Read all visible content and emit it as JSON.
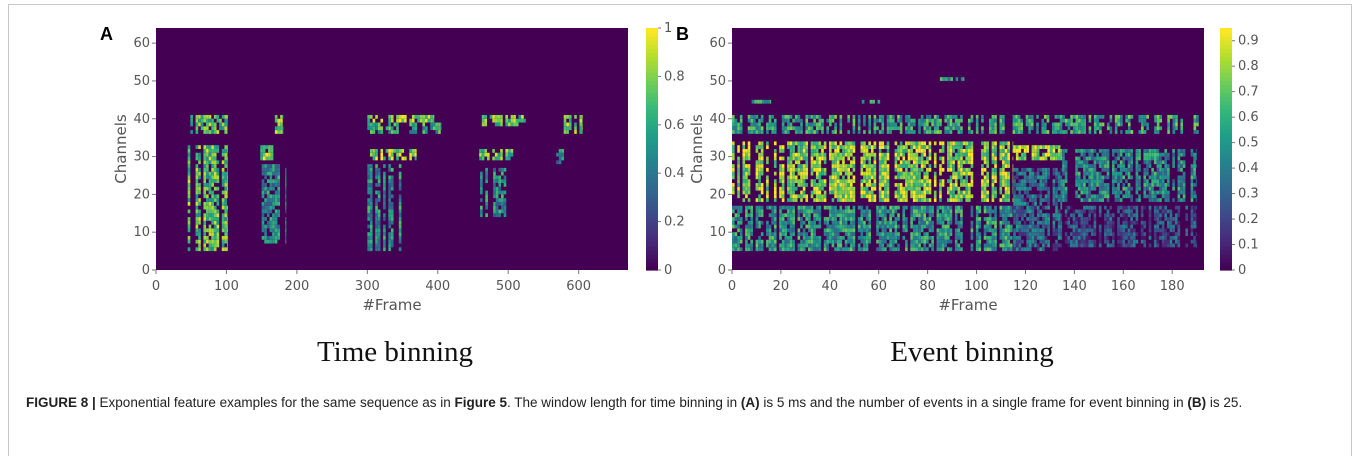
{
  "chart_data": [
    {
      "type": "heatmap",
      "panel_label": "A",
      "title": "Time binning",
      "xlabel": "#Frame",
      "ylabel": "Channels",
      "xlim": [
        0,
        670
      ],
      "ylim": [
        0,
        64
      ],
      "xticks": [
        0,
        100,
        200,
        300,
        400,
        500,
        600
      ],
      "yticks": [
        0,
        10,
        20,
        30,
        40,
        50,
        60
      ],
      "colorbar": {
        "min": 0,
        "max": 1,
        "ticks": [
          "0",
          "0.2",
          "0.4",
          "0.6",
          "0.8",
          "1"
        ],
        "colormap": "viridis"
      },
      "activity_regions": [
        {
          "x": [
            45,
            102
          ],
          "y": [
            5,
            33
          ],
          "level": 0.72
        },
        {
          "x": [
            45,
            102
          ],
          "y": [
            36,
            41
          ],
          "level": 0.7
        },
        {
          "x": [
            148,
            170
          ],
          "y": [
            29,
            33
          ],
          "level": 0.82
        },
        {
          "x": [
            165,
            180
          ],
          "y": [
            36,
            41
          ],
          "level": 0.75
        },
        {
          "x": [
            150,
            185
          ],
          "y": [
            7,
            28
          ],
          "level": 0.5
        },
        {
          "x": [
            300,
            395
          ],
          "y": [
            39,
            41
          ],
          "level": 0.8
        },
        {
          "x": [
            300,
            405
          ],
          "y": [
            36,
            39
          ],
          "level": 0.6
        },
        {
          "x": [
            300,
            370
          ],
          "y": [
            29,
            32
          ],
          "level": 0.8
        },
        {
          "x": [
            300,
            350
          ],
          "y": [
            5,
            28
          ],
          "level": 0.5
        },
        {
          "x": [
            455,
            525
          ],
          "y": [
            38,
            41
          ],
          "level": 0.75
        },
        {
          "x": [
            455,
            510
          ],
          "y": [
            29,
            32
          ],
          "level": 0.75
        },
        {
          "x": [
            460,
            500
          ],
          "y": [
            14,
            27
          ],
          "level": 0.5
        },
        {
          "x": [
            575,
            605
          ],
          "y": [
            36,
            41
          ],
          "level": 0.8
        },
        {
          "x": [
            568,
            582
          ],
          "y": [
            28,
            32
          ],
          "level": 0.5
        }
      ]
    },
    {
      "type": "heatmap",
      "panel_label": "B",
      "title": "Event binning",
      "xlabel": "#Frame",
      "ylabel": "Channels",
      "xlim": [
        0,
        193
      ],
      "ylim": [
        0,
        64
      ],
      "xticks": [
        0,
        20,
        40,
        60,
        80,
        100,
        120,
        140,
        160,
        180
      ],
      "yticks": [
        0,
        10,
        20,
        30,
        40,
        50,
        60
      ],
      "colorbar": {
        "min": 0,
        "max": 0.95,
        "ticks": [
          "0",
          "0.1",
          "0.2",
          "0.3",
          "0.4",
          "0.5",
          "0.6",
          "0.7",
          "0.8",
          "0.9"
        ],
        "colormap": "viridis"
      },
      "activity_regions": [
        {
          "x": [
            0,
            115
          ],
          "y": [
            18,
            34
          ],
          "level": 0.82
        },
        {
          "x": [
            0,
            115
          ],
          "y": [
            5,
            17
          ],
          "level": 0.55
        },
        {
          "x": [
            0,
            193
          ],
          "y": [
            36,
            41
          ],
          "level": 0.6
        },
        {
          "x": [
            115,
            135
          ],
          "y": [
            29,
            33
          ],
          "level": 0.85
        },
        {
          "x": [
            115,
            135
          ],
          "y": [
            5,
            27
          ],
          "level": 0.35
        },
        {
          "x": [
            135,
            190
          ],
          "y": [
            18,
            32
          ],
          "level": 0.5
        },
        {
          "x": [
            135,
            190
          ],
          "y": [
            6,
            17
          ],
          "level": 0.25
        },
        {
          "x": [
            8,
            16
          ],
          "y": [
            44,
            45
          ],
          "level": 0.6
        },
        {
          "x": [
            52,
            62
          ],
          "y": [
            44,
            45
          ],
          "level": 0.6
        },
        {
          "x": [
            85,
            95
          ],
          "y": [
            50,
            51
          ],
          "level": 0.6
        }
      ]
    }
  ],
  "caption": {
    "label": "FIGURE 8 |",
    "text_1": " Exponential feature examples for the same sequence as in ",
    "ref_fig": "Figure 5",
    "text_2": ". The window length for time binning in ",
    "ref_a": "(A)",
    "text_3": " is 5 ms and the number of events in a single frame for event binning in ",
    "ref_b": "(B)",
    "text_4": " is 25."
  }
}
